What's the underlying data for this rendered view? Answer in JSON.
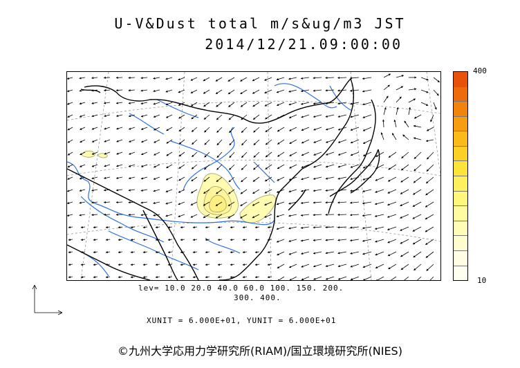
{
  "title": {
    "line1": "U-V&Dust total m/s&ug/m3 JST",
    "line2": "2014/12/21.09:00:00"
  },
  "colorbar": {
    "max_label": "400",
    "min_label": "10",
    "colors": [
      "#e8510a",
      "#ee6a0a",
      "#f3840b",
      "#f79d0f",
      "#faba17",
      "#fcd024",
      "#fde33a",
      "#fef05a",
      "#fff77c",
      "#fffb9e",
      "#fffcb8",
      "#fffdd0",
      "#fffee2",
      "#fffff0"
    ]
  },
  "levels": {
    "line1": "lev= 10.0 20.0 40.0 60.0 100. 150. 200.",
    "line2": "300. 400."
  },
  "units": "XUNIT = 6.000E+01, YUNIT = 6.000E+01",
  "copyright": "©九州大学応用力学研究所(RIAM)/国立環境研究所(NIES)"
}
